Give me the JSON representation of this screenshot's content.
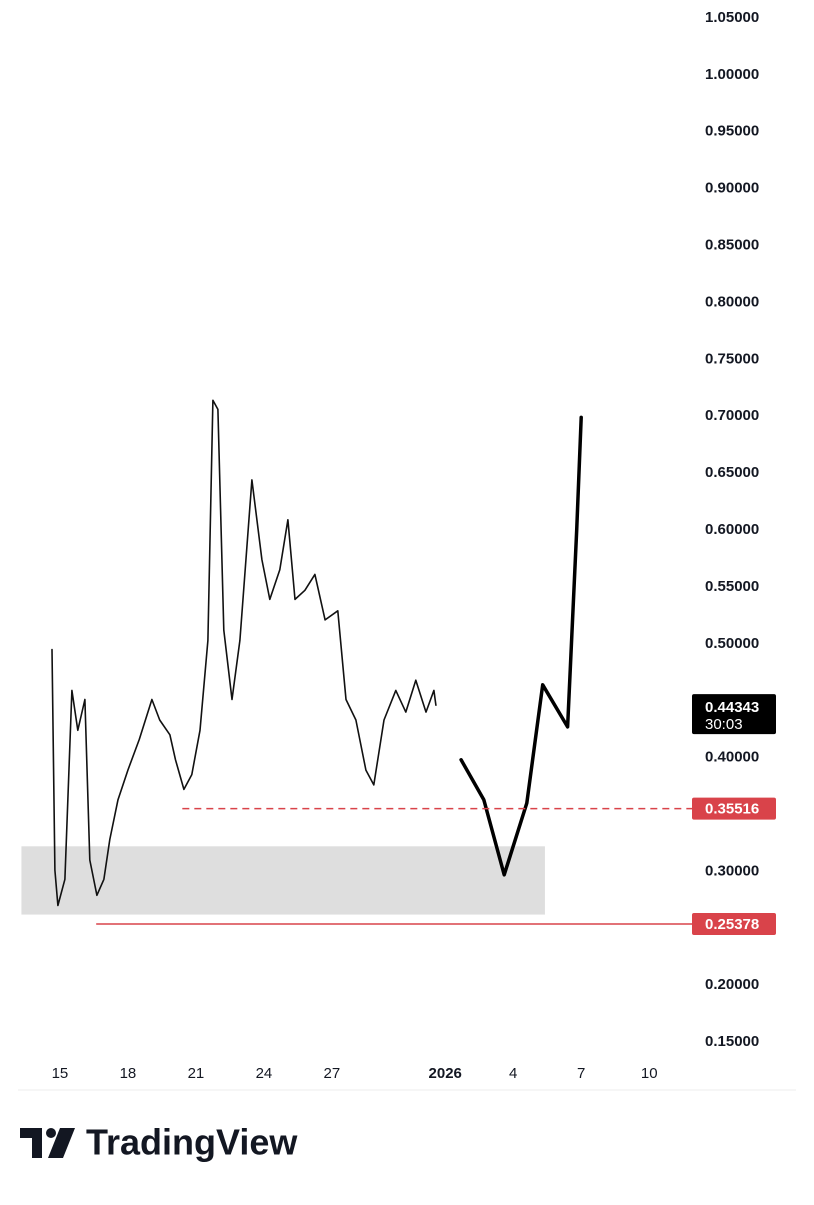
{
  "chart_data": {
    "type": "line",
    "xlim": [
      13.15,
      42.8
    ],
    "ylim": [
      0.1096,
      1.0658
    ],
    "xticks": [
      15,
      18,
      21,
      24,
      27,
      {
        "value": 32,
        "label": "2026"
      },
      {
        "value": 35,
        "label": "4"
      },
      {
        "value": 38,
        "label": "7"
      },
      {
        "value": 41,
        "label": "10"
      }
    ],
    "yticks": [
      {
        "value": 1.05,
        "label": "1.05000"
      },
      {
        "value": 1.0,
        "label": "1.00000"
      },
      {
        "value": 0.95,
        "label": "0.95000"
      },
      {
        "value": 0.9,
        "label": "0.90000"
      },
      {
        "value": 0.85,
        "label": "0.85000"
      },
      {
        "value": 0.8,
        "label": "0.80000"
      },
      {
        "value": 0.75,
        "label": "0.75000"
      },
      {
        "value": 0.7,
        "label": "0.70000"
      },
      {
        "value": 0.65,
        "label": "0.65000"
      },
      {
        "value": 0.6,
        "label": "0.60000"
      },
      {
        "value": 0.55,
        "label": "0.55000"
      },
      {
        "value": 0.5,
        "label": "0.50000"
      },
      {
        "value": 0.4,
        "label": "0.40000"
      },
      {
        "value": 0.3,
        "label": "0.30000"
      },
      {
        "value": 0.2,
        "label": "0.20000"
      },
      {
        "value": 0.15,
        "label": "0.15000"
      }
    ],
    "series": [
      {
        "color": "#111111",
        "width": 1.6,
        "x": [
          14.65,
          14.78,
          14.91,
          15.22,
          15.53,
          15.79,
          16.1,
          16.32,
          16.63,
          16.94,
          17.2,
          17.56,
          18.0,
          18.5,
          19.06,
          19.4,
          19.85,
          20.1,
          20.47,
          20.82,
          21.18,
          21.53,
          21.75,
          21.97,
          22.23,
          22.59,
          22.94,
          23.47,
          23.91,
          24.26,
          24.7,
          25.06,
          25.37,
          25.81,
          26.25,
          26.7,
          27.26,
          27.62,
          28.06,
          28.5,
          28.85,
          29.3,
          29.82,
          30.26,
          30.7,
          31.15,
          31.5,
          31.59
        ],
        "values": [
          0.495,
          0.301,
          0.27,
          0.293,
          0.459,
          0.424,
          0.451,
          0.31,
          0.279,
          0.293,
          0.328,
          0.363,
          0.389,
          0.416,
          0.451,
          0.433,
          0.42,
          0.398,
          0.372,
          0.385,
          0.424,
          0.503,
          0.714,
          0.706,
          0.512,
          0.451,
          0.503,
          0.644,
          0.574,
          0.539,
          0.565,
          0.609,
          0.539,
          0.547,
          0.561,
          0.521,
          0.529,
          0.451,
          0.433,
          0.389,
          0.376,
          0.433,
          0.459,
          0.44,
          0.468,
          0.44,
          0.459,
          0.446
        ]
      },
      {
        "color": "#000000",
        "width": 3.5,
        "x": [
          32.7,
          33.7,
          34.6,
          35.6,
          36.3,
          37.4,
          37.8,
          38.0
        ],
        "values": [
          0.398,
          0.363,
          0.297,
          0.36,
          0.464,
          0.427,
          0.6,
          0.699
        ]
      }
    ],
    "zone": {
      "xlim": [
        13.3,
        36.4
      ],
      "ylim": [
        0.262,
        0.322
      ],
      "color": "#dedede"
    },
    "levels": [
      {
        "value": 0.35516,
        "x_start": 20.4,
        "color": "#d9434a",
        "dashed": true
      },
      {
        "value": 0.25378,
        "x_start": 16.6,
        "color": "#d9434a",
        "dashed": false
      }
    ],
    "last_price": 0.44343,
    "countdown": "30:03",
    "brand": "TradingView"
  }
}
